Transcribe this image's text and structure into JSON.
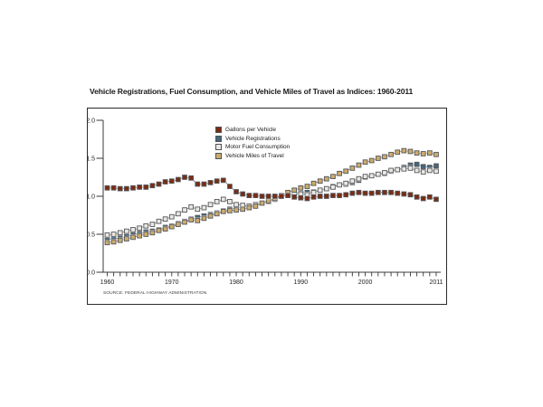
{
  "page": {
    "title": "Vehicle Registrations, Fuel Consumption, and Vehicle Miles of Travel as Indices: 1960-2011",
    "source": "SOURCE: FEDERAL HIGHWAY ADMINISTRATION"
  },
  "chart_data": {
    "type": "line",
    "title": "Vehicle Registrations, Fuel Consumption, and Vehicle Miles of Travel as Indices: 1960-2011",
    "marker": "square",
    "grid": false,
    "legend_position": "inside-top-center",
    "ylim": [
      0.0,
      2.0
    ],
    "yticks": [
      0.0,
      0.5,
      1.0,
      1.5,
      2.0
    ],
    "ytick_labels": [
      "0.0",
      "0.5",
      "1.0",
      "1.5",
      "2.0"
    ],
    "xtick_years": [
      1960,
      1970,
      1980,
      1990,
      2000,
      2011
    ],
    "xtick_labels": [
      "1960",
      "1970",
      "1980",
      "1990",
      "2000",
      "2011"
    ],
    "source": "SOURCE: FEDERAL HIGHWAY ADMINISTRATION",
    "x": [
      1960,
      1961,
      1962,
      1963,
      1964,
      1965,
      1966,
      1967,
      1968,
      1969,
      1970,
      1971,
      1972,
      1973,
      1974,
      1975,
      1976,
      1977,
      1978,
      1979,
      1980,
      1981,
      1982,
      1983,
      1984,
      1985,
      1986,
      1987,
      1988,
      1989,
      1990,
      1991,
      1992,
      1993,
      1994,
      1995,
      1996,
      1997,
      1998,
      1999,
      2000,
      2001,
      2002,
      2003,
      2004,
      2005,
      2006,
      2007,
      2008,
      2009,
      2010,
      2011
    ],
    "series": [
      {
        "name": "Gallons per Vehicle",
        "color": "#7b2b12",
        "values": [
          1.11,
          1.11,
          1.1,
          1.1,
          1.11,
          1.12,
          1.12,
          1.14,
          1.16,
          1.19,
          1.2,
          1.22,
          1.25,
          1.24,
          1.16,
          1.16,
          1.18,
          1.2,
          1.21,
          1.13,
          1.06,
          1.03,
          1.01,
          1.01,
          1.0,
          1.0,
          1.0,
          1.0,
          1.01,
          0.99,
          0.98,
          0.97,
          0.99,
          1.0,
          1.0,
          1.01,
          1.01,
          1.02,
          1.04,
          1.05,
          1.04,
          1.04,
          1.05,
          1.05,
          1.05,
          1.04,
          1.03,
          1.02,
          0.99,
          0.97,
          0.99,
          0.96
        ]
      },
      {
        "name": "Vehicle Registrations",
        "color": "#44687d",
        "values": [
          0.43,
          0.44,
          0.45,
          0.47,
          0.49,
          0.51,
          0.53,
          0.54,
          0.56,
          0.59,
          0.61,
          0.64,
          0.67,
          0.7,
          0.72,
          0.74,
          0.76,
          0.78,
          0.81,
          0.83,
          0.85,
          0.86,
          0.87,
          0.89,
          0.91,
          0.94,
          0.97,
          1.0,
          1.02,
          1.04,
          1.06,
          1.05,
          1.06,
          1.08,
          1.1,
          1.13,
          1.15,
          1.16,
          1.18,
          1.21,
          1.25,
          1.27,
          1.29,
          1.3,
          1.33,
          1.35,
          1.38,
          1.41,
          1.42,
          1.39,
          1.38,
          1.4
        ]
      },
      {
        "name": "Motor Fuel Consumption",
        "color": "#eae8e3",
        "values": [
          0.49,
          0.5,
          0.52,
          0.54,
          0.56,
          0.58,
          0.61,
          0.63,
          0.67,
          0.7,
          0.73,
          0.77,
          0.82,
          0.86,
          0.83,
          0.85,
          0.89,
          0.93,
          0.96,
          0.93,
          0.89,
          0.88,
          0.87,
          0.89,
          0.91,
          0.93,
          0.96,
          1.0,
          1.02,
          1.03,
          1.03,
          1.02,
          1.05,
          1.08,
          1.1,
          1.12,
          1.15,
          1.17,
          1.2,
          1.23,
          1.26,
          1.27,
          1.29,
          1.31,
          1.34,
          1.35,
          1.36,
          1.37,
          1.34,
          1.32,
          1.34,
          1.33
        ]
      },
      {
        "name": "Vehicle Miles of Travel",
        "color": "#cdac6d",
        "values": [
          0.39,
          0.4,
          0.42,
          0.44,
          0.46,
          0.48,
          0.5,
          0.52,
          0.55,
          0.57,
          0.6,
          0.63,
          0.66,
          0.69,
          0.68,
          0.71,
          0.74,
          0.77,
          0.8,
          0.81,
          0.82,
          0.83,
          0.85,
          0.87,
          0.91,
          0.94,
          0.97,
          1.01,
          1.05,
          1.08,
          1.11,
          1.13,
          1.17,
          1.2,
          1.23,
          1.26,
          1.3,
          1.33,
          1.37,
          1.41,
          1.45,
          1.47,
          1.5,
          1.52,
          1.55,
          1.58,
          1.6,
          1.59,
          1.57,
          1.56,
          1.57,
          1.55
        ]
      }
    ]
  }
}
